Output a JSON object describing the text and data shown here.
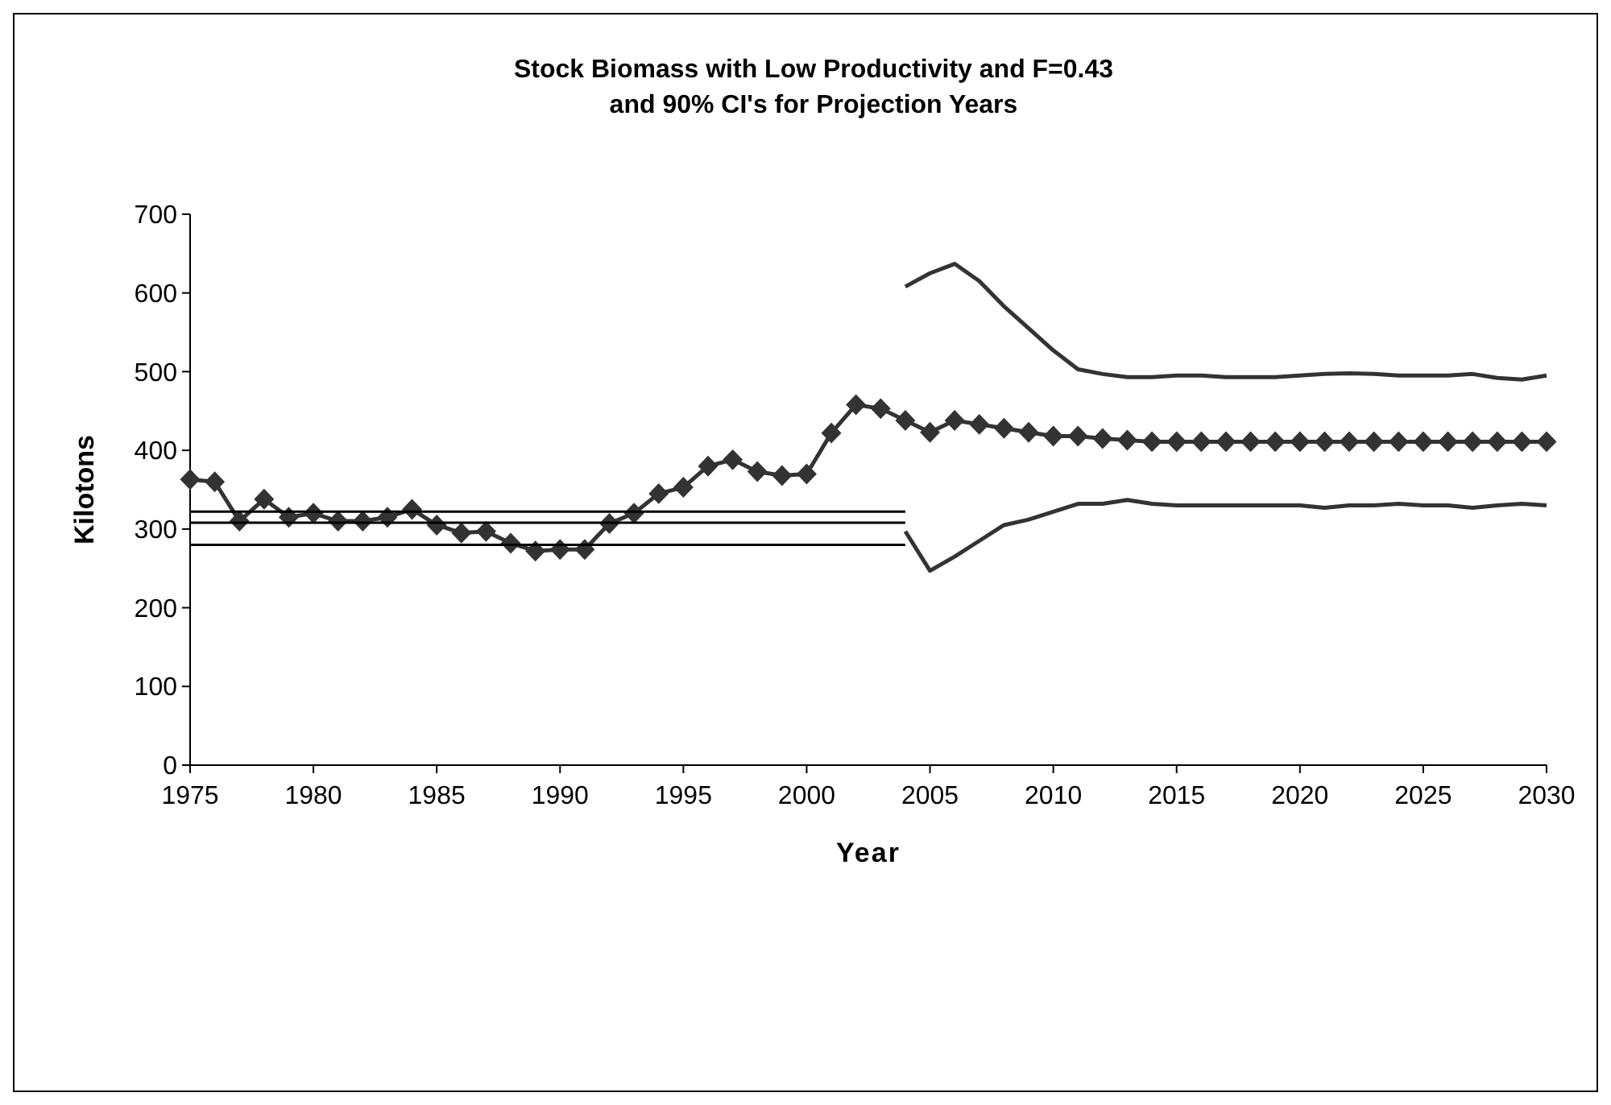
{
  "chart_data": {
    "type": "line",
    "title": "Stock Biomass with Low Productivity and F=0.43\nand 90% CI's for Projection Years",
    "xlabel": "Year",
    "ylabel": "Kilotons",
    "xlim": [
      1975,
      2030
    ],
    "xticks": [
      1975,
      1980,
      1985,
      1990,
      1995,
      2000,
      2005,
      2010,
      2015,
      2020,
      2025,
      2030
    ],
    "ylim": [
      0,
      700
    ],
    "yticks": [
      0,
      100,
      200,
      300,
      400,
      500,
      600,
      700
    ],
    "series": [
      {
        "color": "#333333",
        "marker": "diamond",
        "x": [
          1975,
          1976,
          1977,
          1978,
          1979,
          1980,
          1981,
          1982,
          1983,
          1984,
          1985,
          1986,
          1987,
          1988,
          1989,
          1990,
          1991,
          1992,
          1993,
          1994,
          1995,
          1996,
          1997,
          1998,
          1999,
          2000,
          2001,
          2002,
          2003,
          2004,
          2005,
          2006,
          2007,
          2008,
          2009,
          2010,
          2011,
          2012,
          2013,
          2014,
          2015,
          2016,
          2017,
          2018,
          2019,
          2020,
          2021,
          2022,
          2023,
          2024,
          2025,
          2026,
          2027,
          2028,
          2029,
          2030
        ],
        "values": [
          363,
          360,
          310,
          338,
          315,
          320,
          310,
          310,
          315,
          325,
          305,
          295,
          297,
          282,
          272,
          274,
          274,
          307,
          320,
          345,
          353,
          380,
          388,
          373,
          368,
          370,
          422,
          458,
          453,
          438,
          423,
          438,
          433,
          428,
          423,
          418,
          418,
          415,
          413,
          411,
          411,
          411,
          411,
          411,
          411,
          411,
          411,
          411,
          411,
          411,
          411,
          411,
          411,
          411,
          411,
          411
        ]
      },
      {
        "color": "#333333",
        "marker": "none",
        "x": [
          2004,
          2005,
          2006,
          2007,
          2008,
          2009,
          2010,
          2011,
          2012,
          2013,
          2014,
          2015,
          2016,
          2017,
          2018,
          2019,
          2020,
          2021,
          2022,
          2023,
          2024,
          2025,
          2026,
          2027,
          2028,
          2029,
          2030
        ],
        "values": [
          608,
          625,
          637,
          615,
          583,
          555,
          527,
          503,
          497,
          493,
          493,
          495,
          495,
          493,
          493,
          493,
          495,
          497,
          498,
          497,
          495,
          495,
          495,
          497,
          492,
          490,
          495
        ]
      },
      {
        "color": "#333333",
        "marker": "none",
        "x": [
          2004,
          2005,
          2006,
          2007,
          2008,
          2009,
          2010,
          2011,
          2012,
          2013,
          2014,
          2015,
          2016,
          2017,
          2018,
          2019,
          2020,
          2021,
          2022,
          2023,
          2024,
          2025,
          2026,
          2027,
          2028,
          2029,
          2030
        ],
        "values": [
          297,
          247,
          265,
          285,
          305,
          312,
          322,
          332,
          332,
          337,
          332,
          330,
          330,
          330,
          330,
          330,
          330,
          327,
          330,
          330,
          332,
          330,
          330,
          327,
          330,
          332,
          330
        ]
      },
      {
        "color": "#000000",
        "marker": "none",
        "x": [
          1975,
          2004
        ],
        "values": [
          322,
          322
        ]
      },
      {
        "color": "#000000",
        "marker": "none",
        "x": [
          1975,
          2004
        ],
        "values": [
          308,
          308
        ]
      },
      {
        "color": "#000000",
        "marker": "none",
        "x": [
          1975,
          2004
        ],
        "values": [
          280,
          280
        ]
      }
    ]
  }
}
